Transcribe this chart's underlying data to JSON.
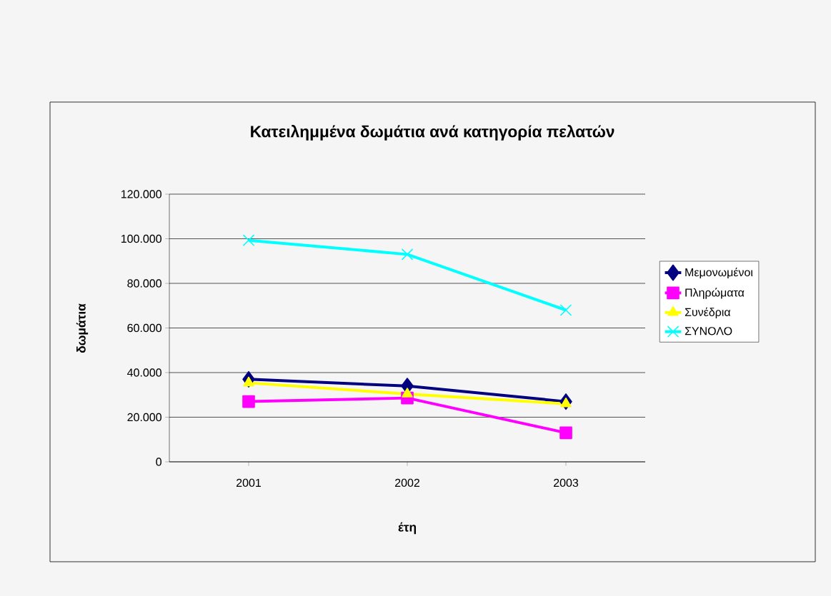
{
  "chart_data": {
    "type": "line",
    "title": "Κατειλημμένα δωμάτια ανά κατηγορία πελατών",
    "xlabel": "έτη",
    "ylabel": "δωμάτια",
    "categories": [
      "2001",
      "2002",
      "2003"
    ],
    "series": [
      {
        "name": "Μεμονωμένοι",
        "color": "#000080",
        "marker": "diamond",
        "values": [
          37000,
          34000,
          27000
        ]
      },
      {
        "name": "Πληρώματα",
        "color": "#ff00ff",
        "marker": "square",
        "values": [
          27000,
          28600,
          13000
        ]
      },
      {
        "name": "Συνέδρια",
        "color": "#ffff00",
        "marker": "triangle",
        "values": [
          35400,
          30400,
          26000
        ]
      },
      {
        "name": "ΣΥΝΟΛΟ",
        "color": "#00ffff",
        "marker": "cross",
        "values": [
          99300,
          93000,
          68000
        ]
      }
    ],
    "ylim": [
      0,
      120000
    ],
    "yticks": [
      0,
      {
        "value": 20000,
        "label": "20.000"
      },
      {
        "value": 40000,
        "label": "40.000"
      },
      {
        "value": 60000,
        "label": "60.000"
      },
      {
        "value": 80000,
        "label": "80.000"
      },
      {
        "value": 100000,
        "label": "100.000"
      },
      {
        "value": 120000,
        "label": "120.000"
      }
    ],
    "grid": "y",
    "legend": "right",
    "line_style": "solid"
  }
}
